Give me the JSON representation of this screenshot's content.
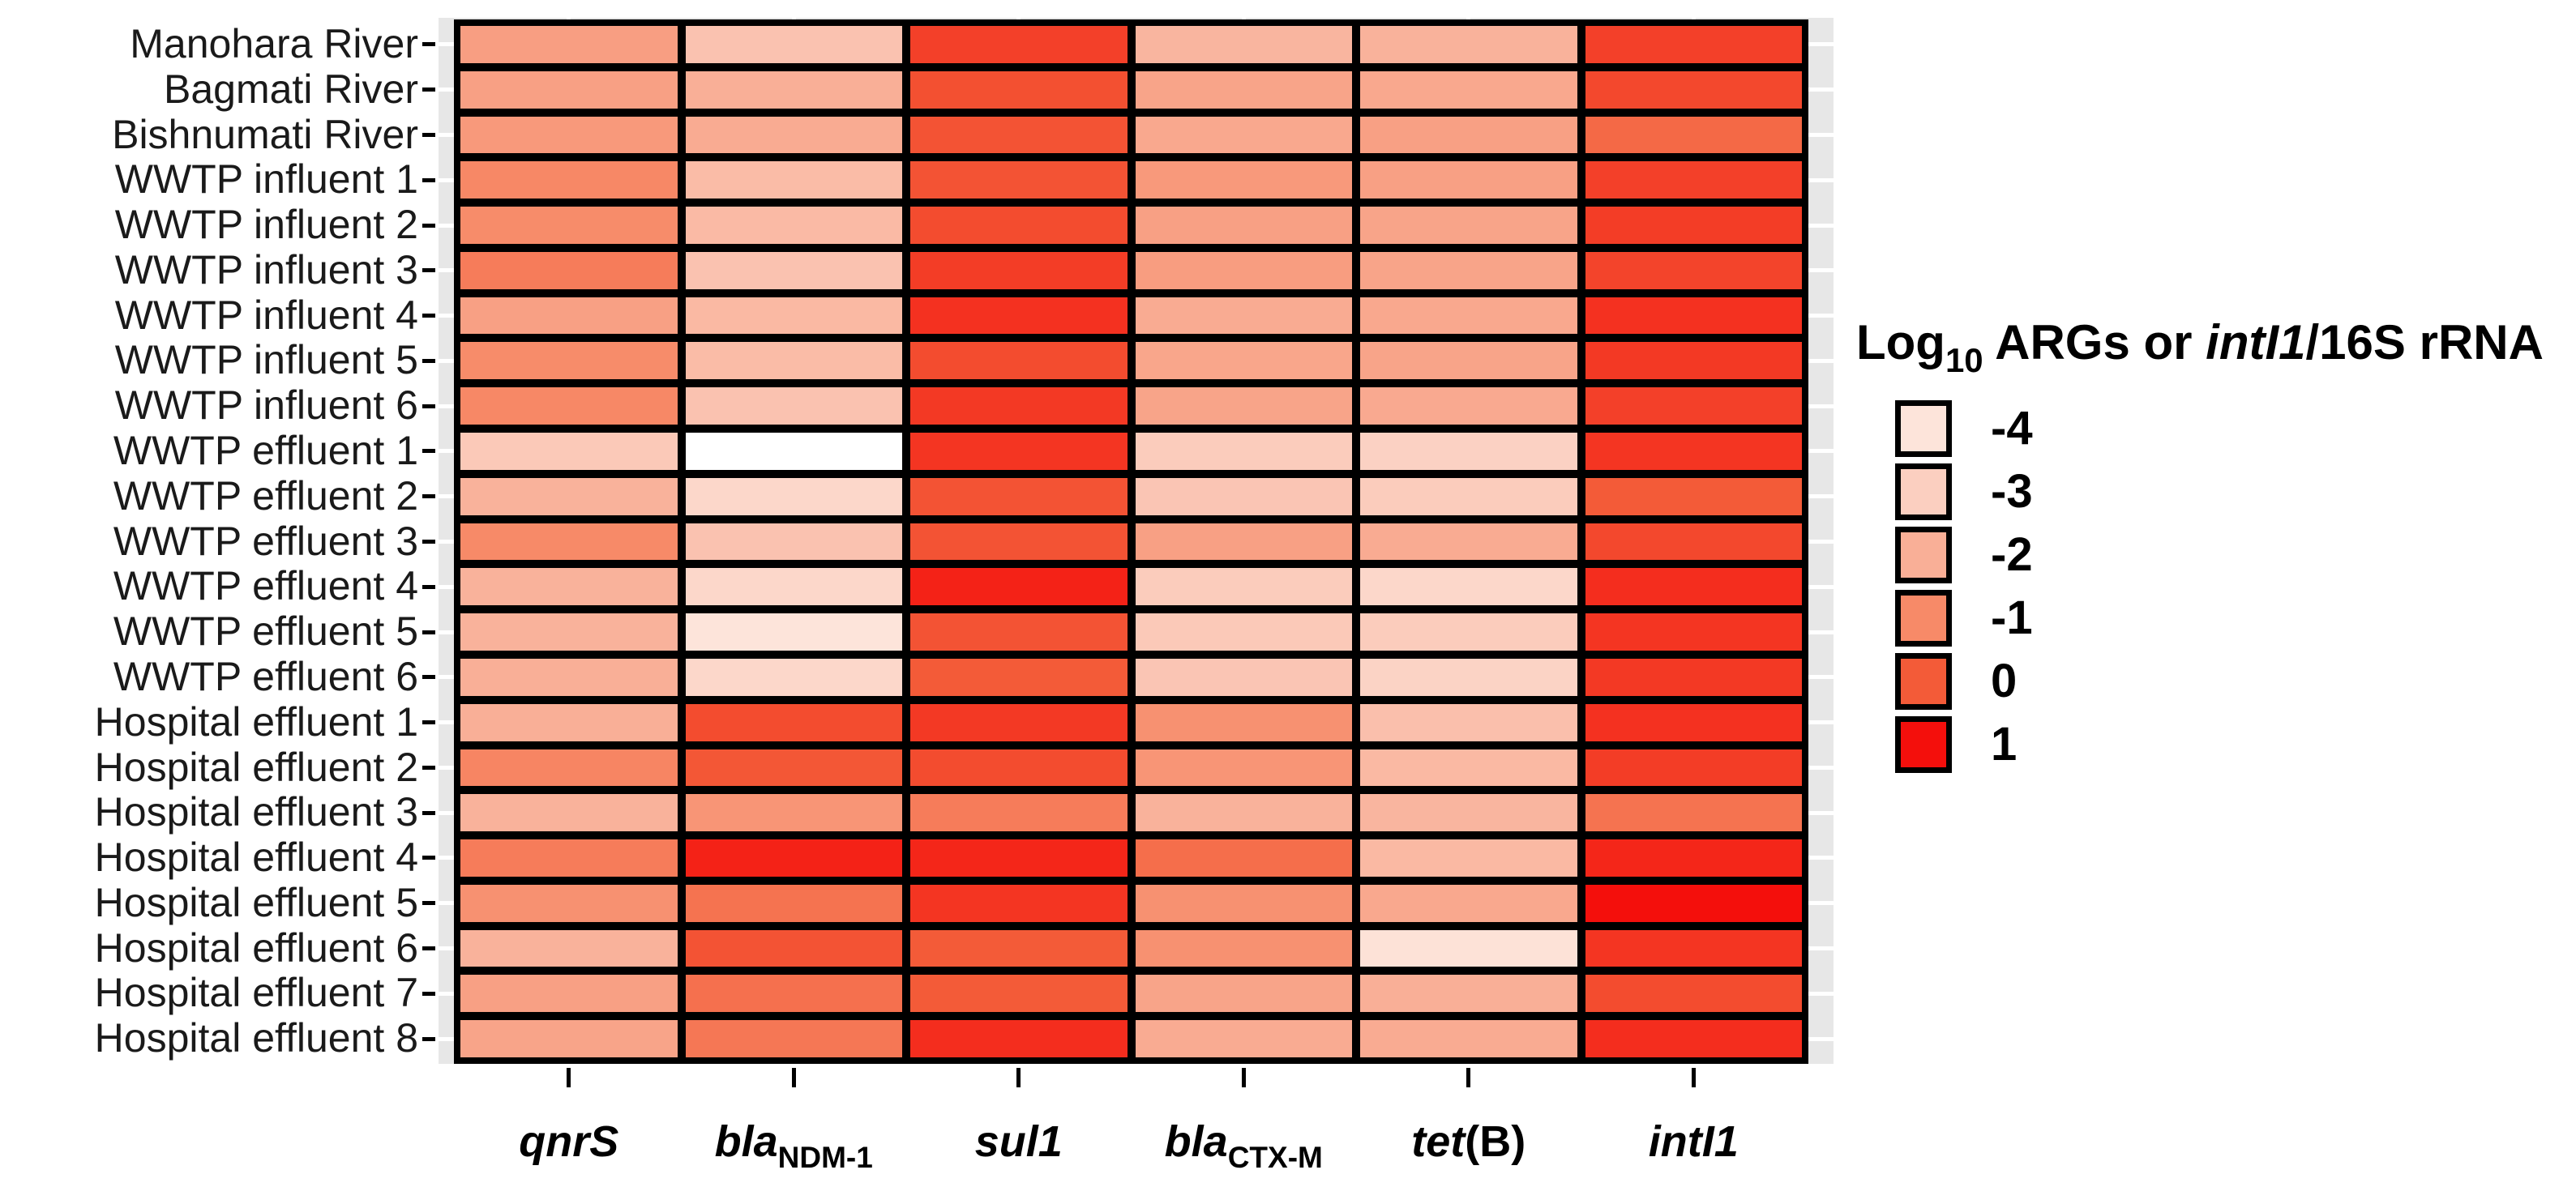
{
  "chart_data": {
    "type": "heatmap",
    "title": "",
    "xlabel": "",
    "ylabel": "",
    "legend_position": "right",
    "legend": {
      "title_text": "Log10 ARGs or intI1/16S rRNA",
      "title_parts": [
        {
          "t": "Log",
          "s": "n"
        },
        {
          "t": "10",
          "s": "sub"
        },
        {
          "t": " ARGs or ",
          "s": "n"
        },
        {
          "t": "intI1",
          "s": "i"
        },
        {
          "t": "/16S rRNA",
          "s": "n"
        }
      ],
      "entries": [
        {
          "value": -4,
          "label": "-4"
        },
        {
          "value": -3,
          "label": "-3"
        },
        {
          "value": -2,
          "label": "-2"
        },
        {
          "value": -1,
          "label": "-1"
        },
        {
          "value": 0,
          "label": "0"
        },
        {
          "value": 1,
          "label": "1"
        }
      ]
    },
    "scale": {
      "domain": [
        -4.6,
        1
      ],
      "stops": [
        {
          "v": -4.6,
          "c": "#FFFFFF"
        },
        {
          "v": -4.0,
          "c": "#FDE4DA"
        },
        {
          "v": -3.0,
          "c": "#FBCFC0"
        },
        {
          "v": -2.0,
          "c": "#F9AF97"
        },
        {
          "v": -1.0,
          "c": "#F78A68"
        },
        {
          "v": 0.0,
          "c": "#F35B38"
        },
        {
          "v": 1.0,
          "c": "#F40F0C"
        }
      ]
    },
    "columns": [
      {
        "id": "qnrS",
        "label_text": "qnrS",
        "label_parts": [
          {
            "t": "qnrS",
            "s": "i"
          }
        ]
      },
      {
        "id": "blaNDM-1",
        "label_text": "blaNDM-1",
        "label_parts": [
          {
            "t": "bla",
            "s": "i"
          },
          {
            "t": "NDM-1",
            "s": "sub"
          }
        ]
      },
      {
        "id": "sul1",
        "label_text": "sul1",
        "label_parts": [
          {
            "t": "sul1",
            "s": "i"
          }
        ]
      },
      {
        "id": "blaCTX-M",
        "label_text": "blaCTX-M",
        "label_parts": [
          {
            "t": "bla",
            "s": "i"
          },
          {
            "t": "CTX-M",
            "s": "sub"
          }
        ]
      },
      {
        "id": "tet(B)",
        "label_text": "tet(B)",
        "label_parts": [
          {
            "t": "tet",
            "s": "i"
          },
          {
            "t": "(B)",
            "s": "n"
          }
        ]
      },
      {
        "id": "intI1",
        "label_text": "intI1",
        "label_parts": [
          {
            "t": "intI1",
            "s": "i"
          }
        ]
      }
    ],
    "rows": [
      "Manohara River",
      "Bagmati River",
      "Bishnumati River",
      "WWTP influent 1",
      "WWTP influent 2",
      "WWTP influent 3",
      "WWTP influent 4",
      "WWTP influent 5",
      "WWTP influent 6",
      "WWTP effluent 1",
      "WWTP effluent 2",
      "WWTP effluent 3",
      "WWTP effluent 4",
      "WWTP effluent 5",
      "WWTP effluent 6",
      "Hospital effluent 1",
      "Hospital effluent 2",
      "Hospital effluent 3",
      "Hospital effluent 4",
      "Hospital effluent 5",
      "Hospital effluent 6",
      "Hospital effluent 7",
      "Hospital effluent 8"
    ],
    "values": [
      [
        -1.55,
        -2.6,
        0.35,
        -2.2,
        -2.1,
        0.35
      ],
      [
        -1.6,
        -2.0,
        0.15,
        -1.7,
        -1.8,
        0.25
      ],
      [
        -1.4,
        -1.9,
        0.1,
        -1.8,
        -1.6,
        -0.3
      ],
      [
        -0.95,
        -2.4,
        0.1,
        -1.4,
        -1.6,
        0.35
      ],
      [
        -1.05,
        -2.35,
        0.2,
        -1.6,
        -1.7,
        0.4
      ],
      [
        -0.7,
        -2.6,
        0.4,
        -1.5,
        -1.7,
        0.3
      ],
      [
        -1.6,
        -2.3,
        0.55,
        -1.9,
        -1.8,
        0.55
      ],
      [
        -1.05,
        -2.4,
        0.2,
        -1.75,
        -1.7,
        0.45
      ],
      [
        -0.95,
        -2.6,
        0.45,
        -1.7,
        -1.85,
        0.35
      ],
      [
        -2.8,
        -4.6,
        0.5,
        -2.9,
        -3.1,
        0.5
      ],
      [
        -2.1,
        -3.4,
        0.1,
        -2.7,
        -2.9,
        0.0
      ],
      [
        -1.0,
        -2.6,
        0.1,
        -1.6,
        -1.9,
        0.25
      ],
      [
        -2.1,
        -3.4,
        0.75,
        -2.9,
        -3.4,
        0.6
      ],
      [
        -2.1,
        -4.0,
        0.1,
        -2.8,
        -2.9,
        0.5
      ],
      [
        -2.0,
        -3.4,
        0.0,
        -2.7,
        -3.2,
        0.45
      ],
      [
        -2.0,
        0.2,
        0.45,
        -1.2,
        -2.5,
        0.55
      ],
      [
        -0.9,
        0.05,
        0.2,
        -1.3,
        -2.3,
        0.4
      ],
      [
        -2.1,
        -1.3,
        -0.7,
        -2.1,
        -2.2,
        -0.5
      ],
      [
        -0.7,
        0.75,
        0.7,
        -0.4,
        -2.3,
        0.7
      ],
      [
        -1.2,
        -0.5,
        0.5,
        -1.2,
        -1.8,
        1.0
      ],
      [
        -2.1,
        0.1,
        0.0,
        -1.2,
        -3.9,
        0.5
      ],
      [
        -1.6,
        -0.45,
        0.0,
        -1.7,
        -2.0,
        0.2
      ],
      [
        -1.7,
        -0.6,
        0.6,
        -1.9,
        -1.9,
        0.6
      ]
    ]
  }
}
